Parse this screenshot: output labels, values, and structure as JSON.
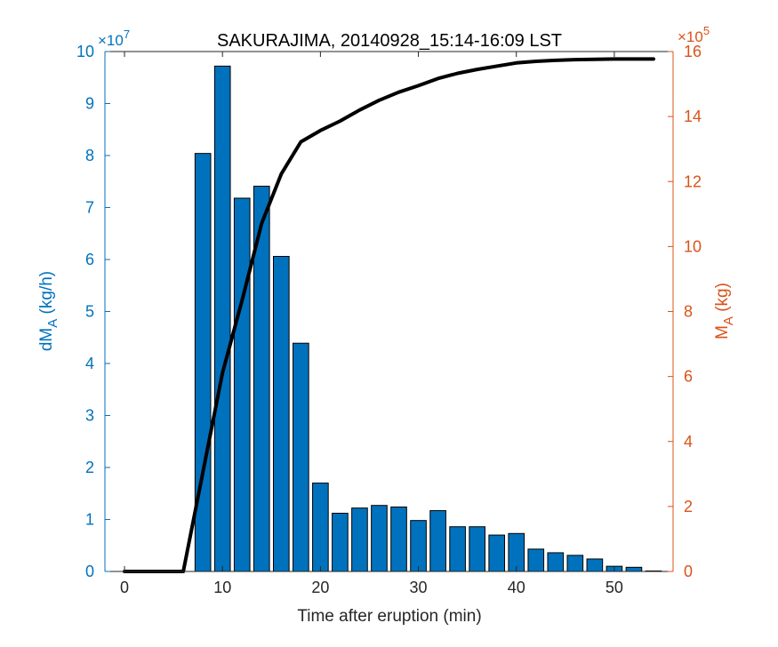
{
  "chart_data": {
    "type": "bar+line",
    "title": "SAKURAJIMA, 20140928_15:14-16:09 LST",
    "xlabel": "Time after eruption (min)",
    "ylabel_left": {
      "main": "dM",
      "sub": "A",
      "unit": " (kg/h)"
    },
    "ylabel_right": {
      "main": "M",
      "sub": "A",
      "unit": " (kg)"
    },
    "left_exponent": {
      "prefix": "×10",
      "power": "7"
    },
    "right_exponent": {
      "prefix": "×10",
      "power": "5"
    },
    "xlim": [
      -2,
      56
    ],
    "ylim_left": [
      0,
      10
    ],
    "ylim_right": [
      0,
      16
    ],
    "xticks": [
      0,
      10,
      20,
      30,
      40,
      50
    ],
    "yticks_left": [
      0,
      1,
      2,
      3,
      4,
      5,
      6,
      7,
      8,
      9,
      10
    ],
    "yticks_right": [
      0,
      2,
      4,
      6,
      8,
      10,
      12,
      14,
      16
    ],
    "grid": false,
    "colors": {
      "bars": "#0072BD",
      "bar_edge": "#000000",
      "line": "#000000",
      "left_axis": "#0072BD",
      "right_axis": "#D95319",
      "axis": "#262626"
    },
    "series": [
      {
        "kind": "bar",
        "axis": "left",
        "x": [
          0,
          2,
          4,
          6,
          8,
          10,
          12,
          14,
          16,
          18,
          20,
          22,
          24,
          26,
          28,
          30,
          32,
          34,
          36,
          38,
          40,
          42,
          44,
          46,
          48,
          50,
          52,
          54
        ],
        "values": [
          0,
          0,
          0,
          0,
          8.04,
          9.72,
          7.18,
          7.41,
          6.06,
          4.39,
          1.7,
          1.12,
          1.22,
          1.27,
          1.24,
          0.98,
          1.17,
          0.86,
          0.86,
          0.7,
          0.73,
          0.43,
          0.36,
          0.31,
          0.24,
          0.1,
          0.08,
          0.01
        ]
      },
      {
        "kind": "line",
        "axis": "right",
        "x": [
          0,
          2,
          4,
          6,
          8,
          10,
          12,
          14,
          16,
          18,
          20,
          22,
          24,
          26,
          28,
          30,
          32,
          34,
          36,
          38,
          40,
          42,
          44,
          46,
          48,
          50,
          52,
          54
        ],
        "values": [
          0,
          0,
          0,
          0,
          3.05,
          6.11,
          8.34,
          10.71,
          12.23,
          13.22,
          13.57,
          13.86,
          14.2,
          14.5,
          14.75,
          14.95,
          15.17,
          15.33,
          15.45,
          15.55,
          15.65,
          15.7,
          15.73,
          15.75,
          15.76,
          15.77,
          15.77,
          15.77
        ]
      }
    ]
  }
}
